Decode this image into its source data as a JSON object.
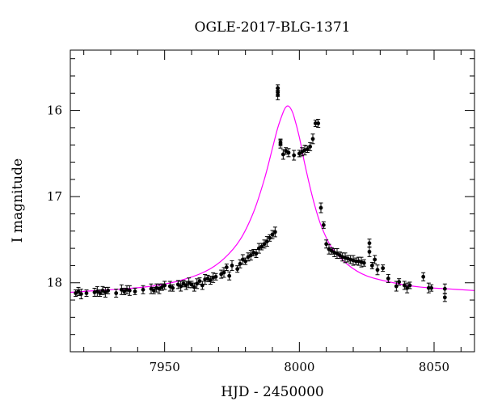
{
  "chart_data": {
    "type": "scatter",
    "title": "OGLE-2017-BLG-1371",
    "xlabel": "HJD - 2450000",
    "ylabel": "I magnitude",
    "xlim": [
      7915,
      8065
    ],
    "ylim": [
      18.8,
      15.3
    ],
    "y_inverted": true,
    "x_ticks": [
      7950,
      8000,
      8050
    ],
    "y_ticks": [
      16,
      17,
      18
    ],
    "grid": false,
    "model_color": "#ff00ff",
    "point_color": "#000000",
    "model": {
      "name": "",
      "x": [
        7915,
        7925,
        7935,
        7945,
        7955,
        7965,
        7972,
        7978,
        7983,
        7987,
        7990,
        7992,
        7994,
        7995,
        7996,
        7997,
        7998,
        8000,
        8002,
        8005,
        8008,
        8012,
        8018,
        8025,
        8035,
        8045,
        8055,
        8065
      ],
      "y": [
        18.11,
        18.09,
        18.07,
        18.04,
        17.98,
        17.87,
        17.72,
        17.5,
        17.18,
        16.8,
        16.44,
        16.2,
        16.02,
        15.96,
        15.95,
        15.99,
        16.07,
        16.31,
        16.62,
        17.02,
        17.33,
        17.59,
        17.79,
        17.92,
        18.0,
        18.05,
        18.07,
        18.09
      ]
    },
    "series": [
      {
        "name": "",
        "x": [
          7917,
          7918,
          7919,
          7921,
          7924,
          7925,
          7926,
          7927,
          7928,
          7929,
          7932,
          7934,
          7935,
          7936,
          7937,
          7939,
          7942,
          7945,
          7946,
          7947,
          7948,
          7949,
          7950,
          7952,
          7953,
          7955,
          7956,
          7957,
          7958,
          7959,
          7960,
          7961,
          7962,
          7963,
          7964,
          7965,
          7966,
          7967,
          7968,
          7969,
          7971,
          7972,
          7973,
          7974,
          7975,
          7977,
          7978,
          7979,
          7980,
          7981,
          7982,
          7983,
          7984,
          7985,
          7986,
          7987,
          7988,
          7989,
          7990,
          7991,
          7992,
          7992,
          7992,
          7993,
          7993,
          7994,
          7995,
          7996,
          7998,
          8000,
          8001,
          8002,
          8003,
          8004,
          8005,
          8006,
          8007,
          8008,
          8009,
          8010,
          8011,
          8012,
          8013,
          8014,
          8015,
          8016,
          8017,
          8018,
          8019,
          8020,
          8021,
          8022,
          8023,
          8024,
          8026,
          8026,
          8027,
          8028,
          8029,
          8031,
          8033,
          8036,
          8037,
          8039,
          8040,
          8041,
          8046,
          8048,
          8049,
          8054,
          8054
        ],
        "y": [
          18.12,
          18.1,
          18.13,
          18.12,
          18.11,
          18.1,
          18.12,
          18.09,
          18.11,
          18.09,
          18.12,
          18.08,
          18.1,
          18.08,
          18.09,
          18.1,
          18.08,
          18.07,
          18.09,
          18.06,
          18.07,
          18.05,
          18.03,
          18.04,
          18.06,
          18.02,
          18.04,
          18.01,
          18.03,
          18.0,
          18.02,
          18.05,
          18.01,
          17.98,
          18.03,
          17.96,
          17.95,
          17.97,
          17.94,
          17.93,
          17.9,
          17.88,
          17.82,
          17.92,
          17.8,
          17.84,
          17.78,
          17.73,
          17.75,
          17.7,
          17.68,
          17.65,
          17.66,
          17.6,
          17.58,
          17.55,
          17.52,
          17.48,
          17.44,
          17.41,
          15.74,
          15.79,
          15.82,
          16.37,
          16.39,
          16.51,
          16.47,
          16.49,
          16.52,
          16.5,
          16.48,
          16.46,
          16.45,
          16.42,
          16.33,
          16.15,
          16.15,
          17.13,
          17.33,
          17.55,
          17.61,
          17.63,
          17.65,
          17.66,
          17.68,
          17.7,
          17.71,
          17.72,
          17.73,
          17.74,
          17.75,
          17.75,
          17.76,
          17.77,
          17.54,
          17.64,
          17.8,
          17.73,
          17.85,
          17.83,
          17.95,
          18.04,
          17.99,
          18.03,
          18.06,
          18.03,
          17.93,
          18.06,
          18.06,
          18.17,
          18.07
        ]
      }
    ]
  }
}
